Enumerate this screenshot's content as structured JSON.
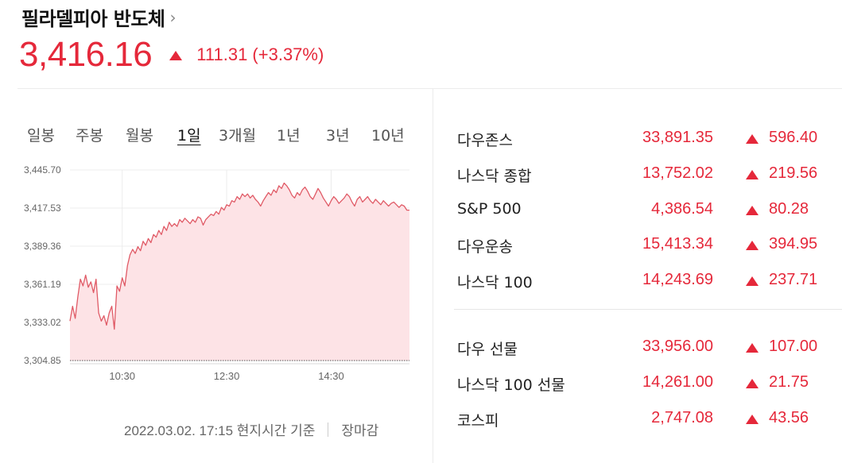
{
  "header": {
    "title": "필라델피아 반도체",
    "chevron": "›",
    "price": "3,416.16",
    "change": "111.31 (+3.37%)",
    "up_color": "#e5283a"
  },
  "period_tabs": [
    {
      "label": "일봉"
    },
    {
      "label": "주봉"
    },
    {
      "label": "월봉"
    },
    {
      "label": "1일"
    },
    {
      "label": "3개월"
    },
    {
      "label": "1년"
    },
    {
      "label": "3년"
    },
    {
      "label": "10년"
    }
  ],
  "active_tab": "1일",
  "chart_data": {
    "type": "area",
    "y_ticks": [
      "3,445.70",
      "3,417.53",
      "3,389.36",
      "3,361.19",
      "3,333.02",
      "3,304.85"
    ],
    "x_ticks": [
      "10:30",
      "12:30",
      "14:30"
    ],
    "ylim": [
      3304.85,
      3445.7
    ],
    "reference_line": 3304.85,
    "line_color": "#e05a66",
    "fill_color": "#fde3e6",
    "grid": true,
    "points": [
      [
        "09:30",
        3334
      ],
      [
        "09:33",
        3345
      ],
      [
        "09:36",
        3336
      ],
      [
        "09:39",
        3352
      ],
      [
        "09:42",
        3365
      ],
      [
        "09:45",
        3360
      ],
      [
        "09:48",
        3368
      ],
      [
        "09:51",
        3359
      ],
      [
        "09:54",
        3363
      ],
      [
        "09:57",
        3355
      ],
      [
        "10:00",
        3365
      ],
      [
        "10:03",
        3340
      ],
      [
        "10:06",
        3334
      ],
      [
        "10:09",
        3338
      ],
      [
        "10:12",
        3331
      ],
      [
        "10:15",
        3340
      ],
      [
        "10:18",
        3345
      ],
      [
        "10:21",
        3328
      ],
      [
        "10:24",
        3360
      ],
      [
        "10:27",
        3356
      ],
      [
        "10:30",
        3366
      ],
      [
        "10:33",
        3360
      ],
      [
        "10:36",
        3375
      ],
      [
        "10:39",
        3383
      ],
      [
        "10:42",
        3387
      ],
      [
        "10:45",
        3384
      ],
      [
        "10:48",
        3389
      ],
      [
        "10:51",
        3386
      ],
      [
        "10:54",
        3393
      ],
      [
        "10:57",
        3390
      ],
      [
        "11:00",
        3395
      ],
      [
        "11:03",
        3392
      ],
      [
        "11:06",
        3398
      ],
      [
        "11:09",
        3396
      ],
      [
        "11:12",
        3401
      ],
      [
        "11:15",
        3398
      ],
      [
        "11:18",
        3404
      ],
      [
        "11:21",
        3401
      ],
      [
        "11:24",
        3407
      ],
      [
        "11:27",
        3404
      ],
      [
        "11:30",
        3406
      ],
      [
        "11:33",
        3404
      ],
      [
        "11:36",
        3409
      ],
      [
        "11:39",
        3407
      ],
      [
        "11:42",
        3410
      ],
      [
        "11:45",
        3408
      ],
      [
        "11:48",
        3406
      ],
      [
        "11:51",
        3409
      ],
      [
        "11:54",
        3407
      ],
      [
        "11:57",
        3411
      ],
      [
        "12:00",
        3410
      ],
      [
        "12:03",
        3405
      ],
      [
        "12:06",
        3409
      ],
      [
        "12:09",
        3411
      ],
      [
        "12:12",
        3413
      ],
      [
        "12:15",
        3412
      ],
      [
        "12:18",
        3415
      ],
      [
        "12:21",
        3413
      ],
      [
        "12:24",
        3418
      ],
      [
        "12:27",
        3416
      ],
      [
        "12:30",
        3420
      ],
      [
        "12:33",
        3419
      ],
      [
        "12:36",
        3423
      ],
      [
        "12:39",
        3422
      ],
      [
        "12:42",
        3426
      ],
      [
        "12:45",
        3424
      ],
      [
        "12:48",
        3428
      ],
      [
        "12:51",
        3426
      ],
      [
        "12:54",
        3428
      ],
      [
        "12:57",
        3425
      ],
      [
        "13:00",
        3427
      ],
      [
        "13:03",
        3424
      ],
      [
        "13:06",
        3422
      ],
      [
        "13:09",
        3419
      ],
      [
        "13:12",
        3423
      ],
      [
        "13:15",
        3426
      ],
      [
        "13:18",
        3429
      ],
      [
        "13:21",
        3427
      ],
      [
        "13:24",
        3431
      ],
      [
        "13:27",
        3429
      ],
      [
        "13:30",
        3434
      ],
      [
        "13:33",
        3432
      ],
      [
        "13:36",
        3436
      ],
      [
        "13:39",
        3434
      ],
      [
        "13:42",
        3431
      ],
      [
        "13:45",
        3427
      ],
      [
        "13:48",
        3425
      ],
      [
        "13:51",
        3429
      ],
      [
        "13:54",
        3427
      ],
      [
        "13:57",
        3431
      ],
      [
        "14:00",
        3433
      ],
      [
        "14:03",
        3430
      ],
      [
        "14:06",
        3426
      ],
      [
        "14:09",
        3424
      ],
      [
        "14:12",
        3428
      ],
      [
        "14:15",
        3432
      ],
      [
        "14:18",
        3429
      ],
      [
        "14:21",
        3425
      ],
      [
        "14:24",
        3422
      ],
      [
        "14:27",
        3419
      ],
      [
        "14:30",
        3423
      ],
      [
        "14:33",
        3426
      ],
      [
        "14:36",
        3424
      ],
      [
        "14:39",
        3421
      ],
      [
        "14:42",
        3423
      ],
      [
        "14:45",
        3425
      ],
      [
        "14:48",
        3428
      ],
      [
        "14:51",
        3426
      ],
      [
        "14:54",
        3422
      ],
      [
        "14:57",
        3419
      ],
      [
        "15:00",
        3424
      ],
      [
        "15:03",
        3426
      ],
      [
        "15:06",
        3422
      ],
      [
        "15:09",
        3424
      ],
      [
        "15:12",
        3426
      ],
      [
        "15:15",
        3423
      ],
      [
        "15:18",
        3421
      ],
      [
        "15:21",
        3424
      ],
      [
        "15:24",
        3422
      ],
      [
        "15:27",
        3420
      ],
      [
        "15:30",
        3423
      ],
      [
        "15:33",
        3421
      ],
      [
        "15:36",
        3419
      ],
      [
        "15:39",
        3421
      ],
      [
        "15:42",
        3422
      ],
      [
        "15:45",
        3420
      ],
      [
        "15:48",
        3418
      ],
      [
        "15:51",
        3420
      ],
      [
        "15:54",
        3419
      ],
      [
        "15:57",
        3416
      ],
      [
        "16:00",
        3416
      ]
    ]
  },
  "footer": {
    "timestamp": "2022.03.02. 17:15 현지시간 기준",
    "status": "장마감"
  },
  "quotes": [
    {
      "name": "다우존스",
      "value": "33,891.35",
      "change": "596.40"
    },
    {
      "name": "나스닥 종합",
      "value": "13,752.02",
      "change": "219.56"
    },
    {
      "name": "S&P 500",
      "value": "4,386.54",
      "change": "80.28"
    },
    {
      "name": "다우운송",
      "value": "15,413.34",
      "change": "394.95"
    },
    {
      "name": "나스닥 100",
      "value": "14,243.69",
      "change": "237.71"
    },
    {
      "name": "다우 선물",
      "value": "33,956.00",
      "change": "107.00"
    },
    {
      "name": "나스닥 100 선물",
      "value": "14,261.00",
      "change": "21.75"
    },
    {
      "name": "코스피",
      "value": "2,747.08",
      "change": "43.56"
    }
  ]
}
